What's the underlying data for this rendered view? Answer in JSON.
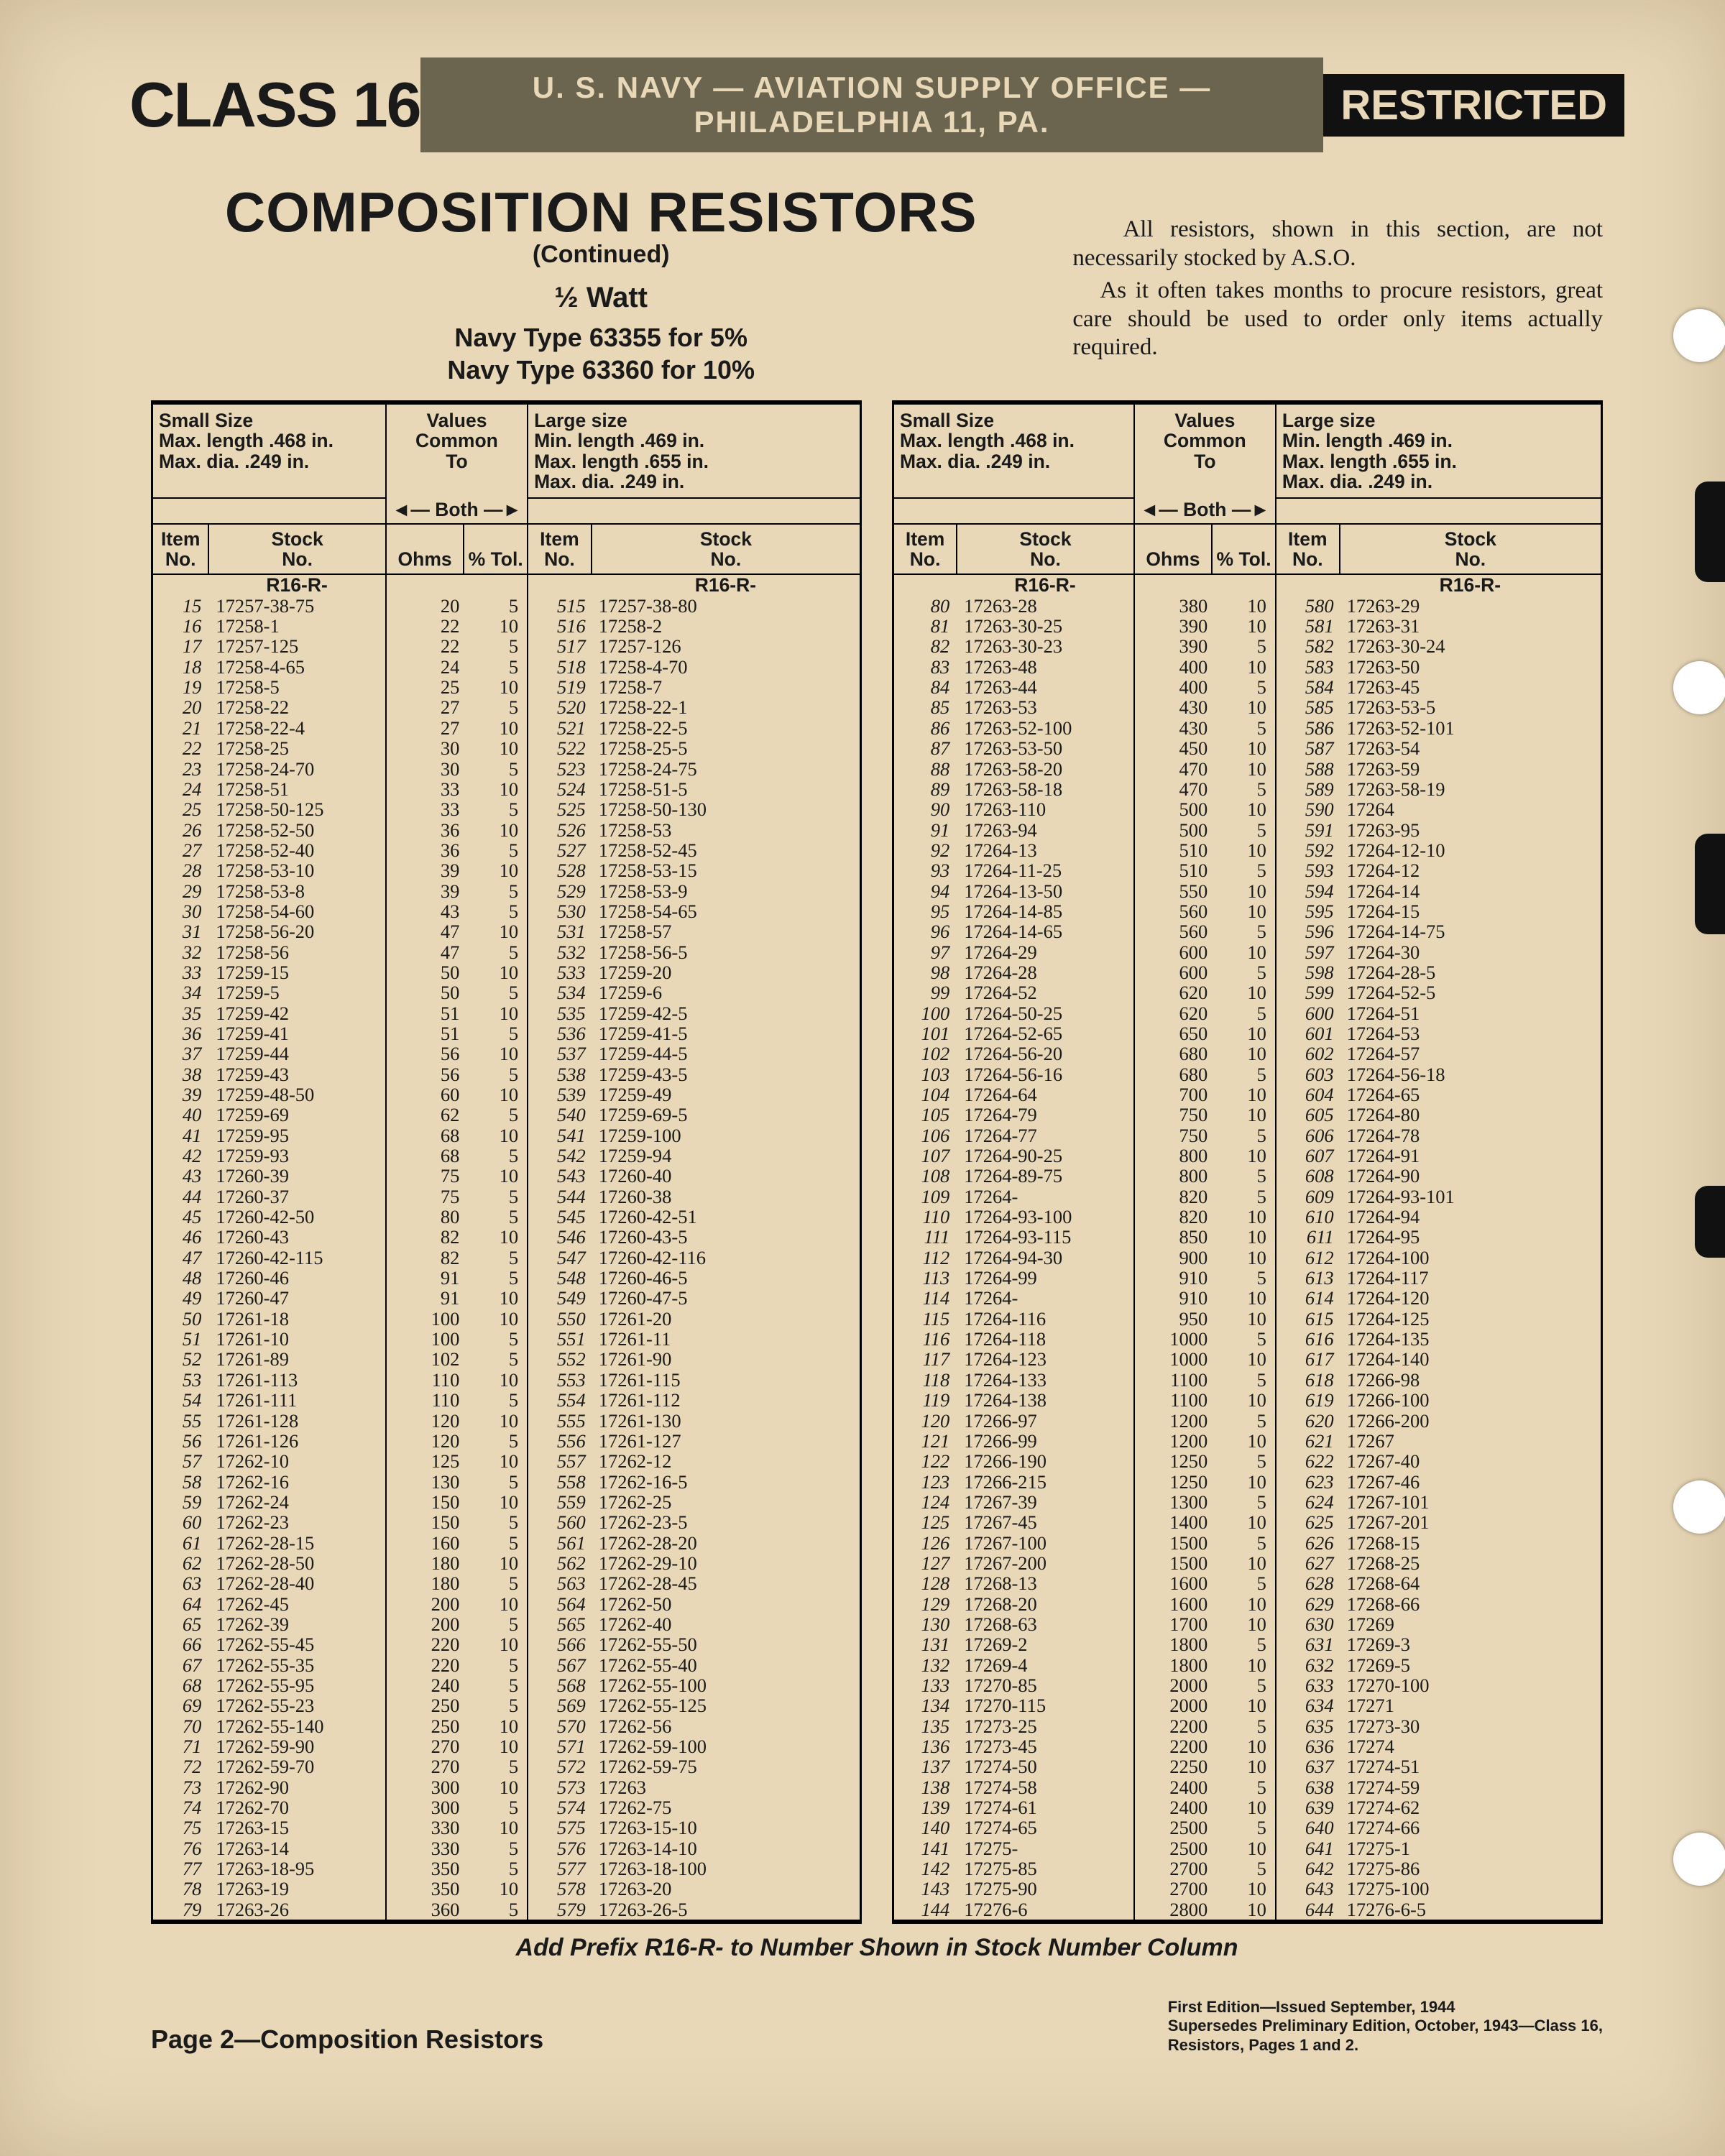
{
  "header": {
    "class_label": "CLASS 16",
    "stripe": "U. S. NAVY — AVIATION SUPPLY OFFICE — PHILADELPHIA 11, PA.",
    "restricted": "RESTRICTED",
    "title": "COMPOSITION RESISTORS",
    "continued": "(Continued)",
    "watt": "½ Watt",
    "type_5": "Navy Type 63355 for  5%",
    "type_10": "Navy Type 63360 for 10%",
    "note_p1": "All resistors, shown in this section, are not necessarily stocked by A.S.O.",
    "note_p2": "As it often takes months to procure resistors, great care should be used to order only items actually required."
  },
  "colheaders": {
    "small_line1": "Small Size",
    "small_line2": "Max. length .468 in.",
    "small_line3": "Max. dia.    .249 in.",
    "values_line1": "Values",
    "values_line2": "Common",
    "values_line3": "To",
    "both": "◄— Both —►",
    "large_line1": "Large size",
    "large_line2": "Min. length .469 in.",
    "large_line3": "Max. length .655 in.",
    "large_line4": "Max. dia.    .249 in.",
    "item": "Item",
    "no": "No.",
    "stock": "Stock",
    "ohms": "Ohms",
    "pct_tol": "% Tol.",
    "r16": "R16-R-"
  },
  "footnote": "Add Prefix R16-R- to Number Shown in Stock Number Column",
  "footer": {
    "page": "Page 2—Composition Resistors",
    "edition_l1": "First Edition—Issued September, 1944",
    "edition_l2": "Supersedes Preliminary Edition, October, 1943—Class 16,",
    "edition_l3": "Resistors, Pages 1 and 2."
  },
  "colors": {
    "page_bg": "#e8d8b8",
    "ink": "#1a1a1a",
    "stripe_bg": "#6b6550",
    "restricted_bg": "#111111"
  },
  "left": [
    {
      "i": "15",
      "s": "17257-38-75",
      "o": "20",
      "t": "5",
      "i2": "515",
      "s2": "17257-38-80"
    },
    {
      "i": "16",
      "s": "17258-1",
      "o": "22",
      "t": "10",
      "i2": "516",
      "s2": "17258-2"
    },
    {
      "i": "17",
      "s": "17257-125",
      "o": "22",
      "t": "5",
      "i2": "517",
      "s2": "17257-126"
    },
    {
      "i": "18",
      "s": "17258-4-65",
      "o": "24",
      "t": "5",
      "i2": "518",
      "s2": "17258-4-70"
    },
    {
      "i": "19",
      "s": "17258-5",
      "o": "25",
      "t": "10",
      "i2": "519",
      "s2": "17258-7"
    },
    {
      "i": "20",
      "s": "17258-22",
      "o": "27",
      "t": "5",
      "i2": "520",
      "s2": "17258-22-1"
    },
    {
      "i": "21",
      "s": "17258-22-4",
      "o": "27",
      "t": "10",
      "i2": "521",
      "s2": "17258-22-5"
    },
    {
      "i": "22",
      "s": "17258-25",
      "o": "30",
      "t": "10",
      "i2": "522",
      "s2": "17258-25-5"
    },
    {
      "i": "23",
      "s": "17258-24-70",
      "o": "30",
      "t": "5",
      "i2": "523",
      "s2": "17258-24-75"
    },
    {
      "i": "24",
      "s": "17258-51",
      "o": "33",
      "t": "10",
      "i2": "524",
      "s2": "17258-51-5"
    },
    {
      "i": "25",
      "s": "17258-50-125",
      "o": "33",
      "t": "5",
      "i2": "525",
      "s2": "17258-50-130"
    },
    {
      "i": "26",
      "s": "17258-52-50",
      "o": "36",
      "t": "10",
      "i2": "526",
      "s2": "17258-53"
    },
    {
      "i": "27",
      "s": "17258-52-40",
      "o": "36",
      "t": "5",
      "i2": "527",
      "s2": "17258-52-45"
    },
    {
      "i": "28",
      "s": "17258-53-10",
      "o": "39",
      "t": "10",
      "i2": "528",
      "s2": "17258-53-15"
    },
    {
      "i": "29",
      "s": "17258-53-8",
      "o": "39",
      "t": "5",
      "i2": "529",
      "s2": "17258-53-9"
    },
    {
      "i": "30",
      "s": "17258-54-60",
      "o": "43",
      "t": "5",
      "i2": "530",
      "s2": "17258-54-65"
    },
    {
      "i": "31",
      "s": "17258-56-20",
      "o": "47",
      "t": "10",
      "i2": "531",
      "s2": "17258-57"
    },
    {
      "i": "32",
      "s": "17258-56",
      "o": "47",
      "t": "5",
      "i2": "532",
      "s2": "17258-56-5"
    },
    {
      "i": "33",
      "s": "17259-15",
      "o": "50",
      "t": "10",
      "i2": "533",
      "s2": "17259-20"
    },
    {
      "i": "34",
      "s": "17259-5",
      "o": "50",
      "t": "5",
      "i2": "534",
      "s2": "17259-6"
    },
    {
      "i": "35",
      "s": "17259-42",
      "o": "51",
      "t": "10",
      "i2": "535",
      "s2": "17259-42-5"
    },
    {
      "i": "36",
      "s": "17259-41",
      "o": "51",
      "t": "5",
      "i2": "536",
      "s2": "17259-41-5"
    },
    {
      "i": "37",
      "s": "17259-44",
      "o": "56",
      "t": "10",
      "i2": "537",
      "s2": "17259-44-5"
    },
    {
      "i": "38",
      "s": "17259-43",
      "o": "56",
      "t": "5",
      "i2": "538",
      "s2": "17259-43-5"
    },
    {
      "i": "39",
      "s": "17259-48-50",
      "o": "60",
      "t": "10",
      "i2": "539",
      "s2": "17259-49"
    },
    {
      "i": "40",
      "s": "17259-69",
      "o": "62",
      "t": "5",
      "i2": "540",
      "s2": "17259-69-5"
    },
    {
      "i": "41",
      "s": "17259-95",
      "o": "68",
      "t": "10",
      "i2": "541",
      "s2": "17259-100"
    },
    {
      "i": "42",
      "s": "17259-93",
      "o": "68",
      "t": "5",
      "i2": "542",
      "s2": "17259-94"
    },
    {
      "i": "43",
      "s": "17260-39",
      "o": "75",
      "t": "10",
      "i2": "543",
      "s2": "17260-40"
    },
    {
      "i": "44",
      "s": "17260-37",
      "o": "75",
      "t": "5",
      "i2": "544",
      "s2": "17260-38"
    },
    {
      "i": "45",
      "s": "17260-42-50",
      "o": "80",
      "t": "5",
      "i2": "545",
      "s2": "17260-42-51"
    },
    {
      "i": "46",
      "s": "17260-43",
      "o": "82",
      "t": "10",
      "i2": "546",
      "s2": "17260-43-5"
    },
    {
      "i": "47",
      "s": "17260-42-115",
      "o": "82",
      "t": "5",
      "i2": "547",
      "s2": "17260-42-116"
    },
    {
      "i": "48",
      "s": "17260-46",
      "o": "91",
      "t": "5",
      "i2": "548",
      "s2": "17260-46-5"
    },
    {
      "i": "49",
      "s": "17260-47",
      "o": "91",
      "t": "10",
      "i2": "549",
      "s2": "17260-47-5"
    },
    {
      "i": "50",
      "s": "17261-18",
      "o": "100",
      "t": "10",
      "i2": "550",
      "s2": "17261-20"
    },
    {
      "i": "51",
      "s": "17261-10",
      "o": "100",
      "t": "5",
      "i2": "551",
      "s2": "17261-11"
    },
    {
      "i": "52",
      "s": "17261-89",
      "o": "102",
      "t": "5",
      "i2": "552",
      "s2": "17261-90"
    },
    {
      "i": "53",
      "s": "17261-113",
      "o": "110",
      "t": "10",
      "i2": "553",
      "s2": "17261-115"
    },
    {
      "i": "54",
      "s": "17261-111",
      "o": "110",
      "t": "5",
      "i2": "554",
      "s2": "17261-112"
    },
    {
      "i": "55",
      "s": "17261-128",
      "o": "120",
      "t": "10",
      "i2": "555",
      "s2": "17261-130"
    },
    {
      "i": "56",
      "s": "17261-126",
      "o": "120",
      "t": "5",
      "i2": "556",
      "s2": "17261-127"
    },
    {
      "i": "57",
      "s": "17262-10",
      "o": "125",
      "t": "10",
      "i2": "557",
      "s2": "17262-12"
    },
    {
      "i": "58",
      "s": "17262-16",
      "o": "130",
      "t": "5",
      "i2": "558",
      "s2": "17262-16-5"
    },
    {
      "i": "59",
      "s": "17262-24",
      "o": "150",
      "t": "10",
      "i2": "559",
      "s2": "17262-25"
    },
    {
      "i": "60",
      "s": "17262-23",
      "o": "150",
      "t": "5",
      "i2": "560",
      "s2": "17262-23-5"
    },
    {
      "i": "61",
      "s": "17262-28-15",
      "o": "160",
      "t": "5",
      "i2": "561",
      "s2": "17262-28-20"
    },
    {
      "i": "62",
      "s": "17262-28-50",
      "o": "180",
      "t": "10",
      "i2": "562",
      "s2": "17262-29-10"
    },
    {
      "i": "63",
      "s": "17262-28-40",
      "o": "180",
      "t": "5",
      "i2": "563",
      "s2": "17262-28-45"
    },
    {
      "i": "64",
      "s": "17262-45",
      "o": "200",
      "t": "10",
      "i2": "564",
      "s2": "17262-50"
    },
    {
      "i": "65",
      "s": "17262-39",
      "o": "200",
      "t": "5",
      "i2": "565",
      "s2": "17262-40"
    },
    {
      "i": "66",
      "s": "17262-55-45",
      "o": "220",
      "t": "10",
      "i2": "566",
      "s2": "17262-55-50"
    },
    {
      "i": "67",
      "s": "17262-55-35",
      "o": "220",
      "t": "5",
      "i2": "567",
      "s2": "17262-55-40"
    },
    {
      "i": "68",
      "s": "17262-55-95",
      "o": "240",
      "t": "5",
      "i2": "568",
      "s2": "17262-55-100"
    },
    {
      "i": "69",
      "s": "17262-55-23",
      "o": "250",
      "t": "5",
      "i2": "569",
      "s2": "17262-55-125"
    },
    {
      "i": "70",
      "s": "17262-55-140",
      "o": "250",
      "t": "10",
      "i2": "570",
      "s2": "17262-56"
    },
    {
      "i": "71",
      "s": "17262-59-90",
      "o": "270",
      "t": "10",
      "i2": "571",
      "s2": "17262-59-100"
    },
    {
      "i": "72",
      "s": "17262-59-70",
      "o": "270",
      "t": "5",
      "i2": "572",
      "s2": "17262-59-75"
    },
    {
      "i": "73",
      "s": "17262-90",
      "o": "300",
      "t": "10",
      "i2": "573",
      "s2": "17263"
    },
    {
      "i": "74",
      "s": "17262-70",
      "o": "300",
      "t": "5",
      "i2": "574",
      "s2": "17262-75"
    },
    {
      "i": "75",
      "s": "17263-15",
      "o": "330",
      "t": "10",
      "i2": "575",
      "s2": "17263-15-10"
    },
    {
      "i": "76",
      "s": "17263-14",
      "o": "330",
      "t": "5",
      "i2": "576",
      "s2": "17263-14-10"
    },
    {
      "i": "77",
      "s": "17263-18-95",
      "o": "350",
      "t": "5",
      "i2": "577",
      "s2": "17263-18-100"
    },
    {
      "i": "78",
      "s": "17263-19",
      "o": "350",
      "t": "10",
      "i2": "578",
      "s2": "17263-20"
    },
    {
      "i": "79",
      "s": "17263-26",
      "o": "360",
      "t": "5",
      "i2": "579",
      "s2": "17263-26-5"
    }
  ],
  "right": [
    {
      "i": "80",
      "s": "17263-28",
      "o": "380",
      "t": "10",
      "i2": "580",
      "s2": "17263-29"
    },
    {
      "i": "81",
      "s": "17263-30-25",
      "o": "390",
      "t": "10",
      "i2": "581",
      "s2": "17263-31"
    },
    {
      "i": "82",
      "s": "17263-30-23",
      "o": "390",
      "t": "5",
      "i2": "582",
      "s2": "17263-30-24"
    },
    {
      "i": "83",
      "s": "17263-48",
      "o": "400",
      "t": "10",
      "i2": "583",
      "s2": "17263-50"
    },
    {
      "i": "84",
      "s": "17263-44",
      "o": "400",
      "t": "5",
      "i2": "584",
      "s2": "17263-45"
    },
    {
      "i": "85",
      "s": "17263-53",
      "o": "430",
      "t": "10",
      "i2": "585",
      "s2": "17263-53-5"
    },
    {
      "i": "86",
      "s": "17263-52-100",
      "o": "430",
      "t": "5",
      "i2": "586",
      "s2": "17263-52-101"
    },
    {
      "i": "87",
      "s": "17263-53-50",
      "o": "450",
      "t": "10",
      "i2": "587",
      "s2": "17263-54"
    },
    {
      "i": "88",
      "s": "17263-58-20",
      "o": "470",
      "t": "10",
      "i2": "588",
      "s2": "17263-59"
    },
    {
      "i": "89",
      "s": "17263-58-18",
      "o": "470",
      "t": "5",
      "i2": "589",
      "s2": "17263-58-19"
    },
    {
      "i": "90",
      "s": "17263-110",
      "o": "500",
      "t": "10",
      "i2": "590",
      "s2": "17264"
    },
    {
      "i": "91",
      "s": "17263-94",
      "o": "500",
      "t": "5",
      "i2": "591",
      "s2": "17263-95"
    },
    {
      "i": "92",
      "s": "17264-13",
      "o": "510",
      "t": "10",
      "i2": "592",
      "s2": "17264-12-10"
    },
    {
      "i": "93",
      "s": "17264-11-25",
      "o": "510",
      "t": "5",
      "i2": "593",
      "s2": "17264-12"
    },
    {
      "i": "94",
      "s": "17264-13-50",
      "o": "550",
      "t": "10",
      "i2": "594",
      "s2": "17264-14"
    },
    {
      "i": "95",
      "s": "17264-14-85",
      "o": "560",
      "t": "10",
      "i2": "595",
      "s2": "17264-15"
    },
    {
      "i": "96",
      "s": "17264-14-65",
      "o": "560",
      "t": "5",
      "i2": "596",
      "s2": "17264-14-75"
    },
    {
      "i": "97",
      "s": "17264-29",
      "o": "600",
      "t": "10",
      "i2": "597",
      "s2": "17264-30"
    },
    {
      "i": "98",
      "s": "17264-28",
      "o": "600",
      "t": "5",
      "i2": "598",
      "s2": "17264-28-5"
    },
    {
      "i": "99",
      "s": "17264-52",
      "o": "620",
      "t": "10",
      "i2": "599",
      "s2": "17264-52-5"
    },
    {
      "i": "100",
      "s": "17264-50-25",
      "o": "620",
      "t": "5",
      "i2": "600",
      "s2": "17264-51"
    },
    {
      "i": "101",
      "s": "17264-52-65",
      "o": "650",
      "t": "10",
      "i2": "601",
      "s2": "17264-53"
    },
    {
      "i": "102",
      "s": "17264-56-20",
      "o": "680",
      "t": "10",
      "i2": "602",
      "s2": "17264-57"
    },
    {
      "i": "103",
      "s": "17264-56-16",
      "o": "680",
      "t": "5",
      "i2": "603",
      "s2": "17264-56-18"
    },
    {
      "i": "104",
      "s": "17264-64",
      "o": "700",
      "t": "10",
      "i2": "604",
      "s2": "17264-65"
    },
    {
      "i": "105",
      "s": "17264-79",
      "o": "750",
      "t": "10",
      "i2": "605",
      "s2": "17264-80"
    },
    {
      "i": "106",
      "s": "17264-77",
      "o": "750",
      "t": "5",
      "i2": "606",
      "s2": "17264-78"
    },
    {
      "i": "107",
      "s": "17264-90-25",
      "o": "800",
      "t": "10",
      "i2": "607",
      "s2": "17264-91"
    },
    {
      "i": "108",
      "s": "17264-89-75",
      "o": "800",
      "t": "5",
      "i2": "608",
      "s2": "17264-90"
    },
    {
      "i": "109",
      "s": "17264-",
      "o": "820",
      "t": "5",
      "i2": "609",
      "s2": "17264-93-101"
    },
    {
      "i": "110",
      "s": "17264-93-100",
      "o": "820",
      "t": "10",
      "i2": "610",
      "s2": "17264-94"
    },
    {
      "i": "111",
      "s": "17264-93-115",
      "o": "850",
      "t": "10",
      "i2": "611",
      "s2": "17264-95"
    },
    {
      "i": "112",
      "s": "17264-94-30",
      "o": "900",
      "t": "10",
      "i2": "612",
      "s2": "17264-100"
    },
    {
      "i": "113",
      "s": "17264-99",
      "o": "910",
      "t": "5",
      "i2": "613",
      "s2": "17264-117"
    },
    {
      "i": "114",
      "s": "17264-",
      "o": "910",
      "t": "10",
      "i2": "614",
      "s2": "17264-120"
    },
    {
      "i": "115",
      "s": "17264-116",
      "o": "950",
      "t": "10",
      "i2": "615",
      "s2": "17264-125"
    },
    {
      "i": "116",
      "s": "17264-118",
      "o": "1000",
      "t": "5",
      "i2": "616",
      "s2": "17264-135"
    },
    {
      "i": "117",
      "s": "17264-123",
      "o": "1000",
      "t": "10",
      "i2": "617",
      "s2": "17264-140"
    },
    {
      "i": "118",
      "s": "17264-133",
      "o": "1100",
      "t": "5",
      "i2": "618",
      "s2": "17266-98"
    },
    {
      "i": "119",
      "s": "17264-138",
      "o": "1100",
      "t": "10",
      "i2": "619",
      "s2": "17266-100"
    },
    {
      "i": "120",
      "s": "17266-97",
      "o": "1200",
      "t": "5",
      "i2": "620",
      "s2": "17266-200"
    },
    {
      "i": "121",
      "s": "17266-99",
      "o": "1200",
      "t": "10",
      "i2": "621",
      "s2": "17267"
    },
    {
      "i": "122",
      "s": "17266-190",
      "o": "1250",
      "t": "5",
      "i2": "622",
      "s2": "17267-40"
    },
    {
      "i": "123",
      "s": "17266-215",
      "o": "1250",
      "t": "10",
      "i2": "623",
      "s2": "17267-46"
    },
    {
      "i": "124",
      "s": "17267-39",
      "o": "1300",
      "t": "5",
      "i2": "624",
      "s2": "17267-101"
    },
    {
      "i": "125",
      "s": "17267-45",
      "o": "1400",
      "t": "10",
      "i2": "625",
      "s2": "17267-201"
    },
    {
      "i": "126",
      "s": "17267-100",
      "o": "1500",
      "t": "5",
      "i2": "626",
      "s2": "17268-15"
    },
    {
      "i": "127",
      "s": "17267-200",
      "o": "1500",
      "t": "10",
      "i2": "627",
      "s2": "17268-25"
    },
    {
      "i": "128",
      "s": "17268-13",
      "o": "1600",
      "t": "5",
      "i2": "628",
      "s2": "17268-64"
    },
    {
      "i": "129",
      "s": "17268-20",
      "o": "1600",
      "t": "10",
      "i2": "629",
      "s2": "17268-66"
    },
    {
      "i": "130",
      "s": "17268-63",
      "o": "1700",
      "t": "10",
      "i2": "630",
      "s2": "17269"
    },
    {
      "i": "131",
      "s": "17269-2",
      "o": "1800",
      "t": "5",
      "i2": "631",
      "s2": "17269-3"
    },
    {
      "i": "132",
      "s": "17269-4",
      "o": "1800",
      "t": "10",
      "i2": "632",
      "s2": "17269-5"
    },
    {
      "i": "133",
      "s": "17270-85",
      "o": "2000",
      "t": "5",
      "i2": "633",
      "s2": "17270-100"
    },
    {
      "i": "134",
      "s": "17270-115",
      "o": "2000",
      "t": "10",
      "i2": "634",
      "s2": "17271"
    },
    {
      "i": "135",
      "s": "17273-25",
      "o": "2200",
      "t": "5",
      "i2": "635",
      "s2": "17273-30"
    },
    {
      "i": "136",
      "s": "17273-45",
      "o": "2200",
      "t": "10",
      "i2": "636",
      "s2": "17274"
    },
    {
      "i": "137",
      "s": "17274-50",
      "o": "2250",
      "t": "10",
      "i2": "637",
      "s2": "17274-51"
    },
    {
      "i": "138",
      "s": "17274-58",
      "o": "2400",
      "t": "5",
      "i2": "638",
      "s2": "17274-59"
    },
    {
      "i": "139",
      "s": "17274-61",
      "o": "2400",
      "t": "10",
      "i2": "639",
      "s2": "17274-62"
    },
    {
      "i": "140",
      "s": "17274-65",
      "o": "2500",
      "t": "5",
      "i2": "640",
      "s2": "17274-66"
    },
    {
      "i": "141",
      "s": "17275-",
      "o": "2500",
      "t": "10",
      "i2": "641",
      "s2": "17275-1"
    },
    {
      "i": "142",
      "s": "17275-85",
      "o": "2700",
      "t": "5",
      "i2": "642",
      "s2": "17275-86"
    },
    {
      "i": "143",
      "s": "17275-90",
      "o": "2700",
      "t": "10",
      "i2": "643",
      "s2": "17275-100"
    },
    {
      "i": "144",
      "s": "17276-6",
      "o": "2800",
      "t": "10",
      "i2": "644",
      "s2": "17276-6-5"
    }
  ]
}
